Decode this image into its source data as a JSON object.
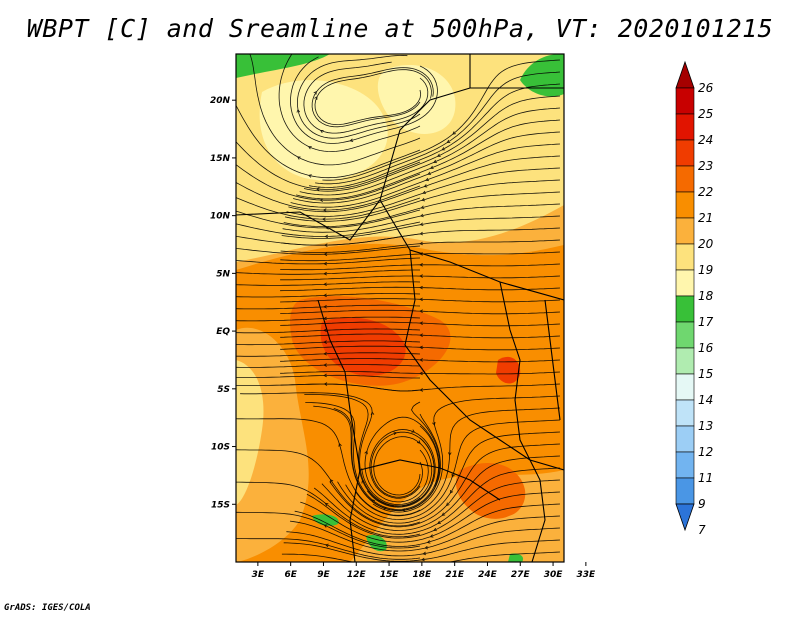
{
  "title": "WBPT [C] and Sreamline at 500hPa, VT: 2020101215",
  "footer": "GrADS: IGES/COLA",
  "chart_data": {
    "type": "heatmap",
    "title": "WBPT [C] and Sreamline at 500hPa, VT: 2020101215",
    "variable": "WBPT [C]",
    "overlay": "streamlines",
    "level": "500hPa",
    "valid_time": "2020101215",
    "x_ticks": [
      "3E",
      "6E",
      "9E",
      "12E",
      "15E",
      "18E",
      "21E",
      "24E",
      "27E",
      "30E",
      "33E"
    ],
    "y_ticks": [
      "20N",
      "15N",
      "10N",
      "5N",
      "EQ",
      "5S",
      "10S",
      "15S"
    ],
    "xlim": [
      1,
      31
    ],
    "ylim": [
      -20,
      24
    ],
    "colorbar": {
      "labels": [
        "26",
        "25",
        "24",
        "23",
        "22",
        "21",
        "20",
        "19",
        "18",
        "17",
        "16",
        "15",
        "14",
        "13",
        "12",
        "11",
        "9",
        "7"
      ],
      "colors": [
        "#a50000",
        "#c80000",
        "#e11400",
        "#f03c00",
        "#f56a00",
        "#f98e00",
        "#fbb13c",
        "#fde27d",
        "#fff6ad",
        "#38c038",
        "#6fd76f",
        "#b0ecb0",
        "#e5f8f5",
        "#bfe3f8",
        "#9ccef5",
        "#72b4f0",
        "#4a96e5",
        "#2c74d9"
      ]
    }
  }
}
